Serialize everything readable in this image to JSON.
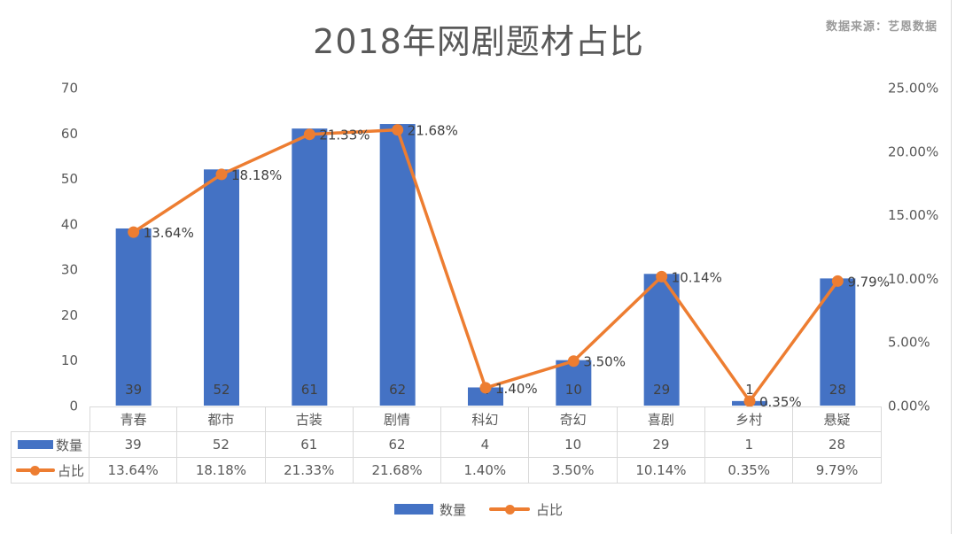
{
  "title": "2018年网剧题材占比",
  "source": "数据来源：艺恩数据",
  "legend": {
    "count_label": "数量",
    "ratio_label": "占比"
  },
  "colors": {
    "bar": "#4472C4",
    "line": "#ED7D31",
    "label_text": "#404040",
    "axis_text": "#595959",
    "grid": "#d9d9d9"
  },
  "chart_data": {
    "type": "combo bar+line (dual axis)",
    "title": "2018年网剧题材占比",
    "categories": [
      "青春",
      "都市",
      "古装",
      "剧情",
      "科幻",
      "奇幻",
      "喜剧",
      "乡村",
      "悬疑"
    ],
    "series": [
      {
        "name": "数量",
        "type": "bar",
        "axis": "left",
        "values": [
          39,
          52,
          61,
          62,
          4,
          10,
          29,
          1,
          28
        ]
      },
      {
        "name": "占比",
        "type": "line",
        "axis": "right",
        "values": [
          13.64,
          18.18,
          21.33,
          21.68,
          1.4,
          3.5,
          10.14,
          0.35,
          9.79
        ],
        "labels": [
          "13.64%",
          "18.18%",
          "21.33%",
          "21.68%",
          "1.40%",
          "3.50%",
          "10.14%",
          "0.35%",
          "9.79%"
        ]
      }
    ],
    "left_axis": {
      "min": 0,
      "max": 70,
      "ticks": [
        "70",
        "60",
        "50",
        "40",
        "30",
        "20",
        "10",
        "0"
      ]
    },
    "right_axis": {
      "min": 0,
      "max": 25,
      "ticks": [
        "25.00%",
        "20.00%",
        "15.00%",
        "10.00%",
        "5.00%",
        "0.00%"
      ]
    },
    "grid": false,
    "legend_position": "bottom"
  },
  "table": {
    "rows": [
      {
        "key": "数量",
        "values": [
          "39",
          "52",
          "61",
          "62",
          "4",
          "10",
          "29",
          "1",
          "28"
        ]
      },
      {
        "key": "占比",
        "values": [
          "13.64%",
          "18.18%",
          "21.33%",
          "21.68%",
          "1.40%",
          "3.50%",
          "10.14%",
          "0.35%",
          "9.79%"
        ]
      }
    ]
  }
}
